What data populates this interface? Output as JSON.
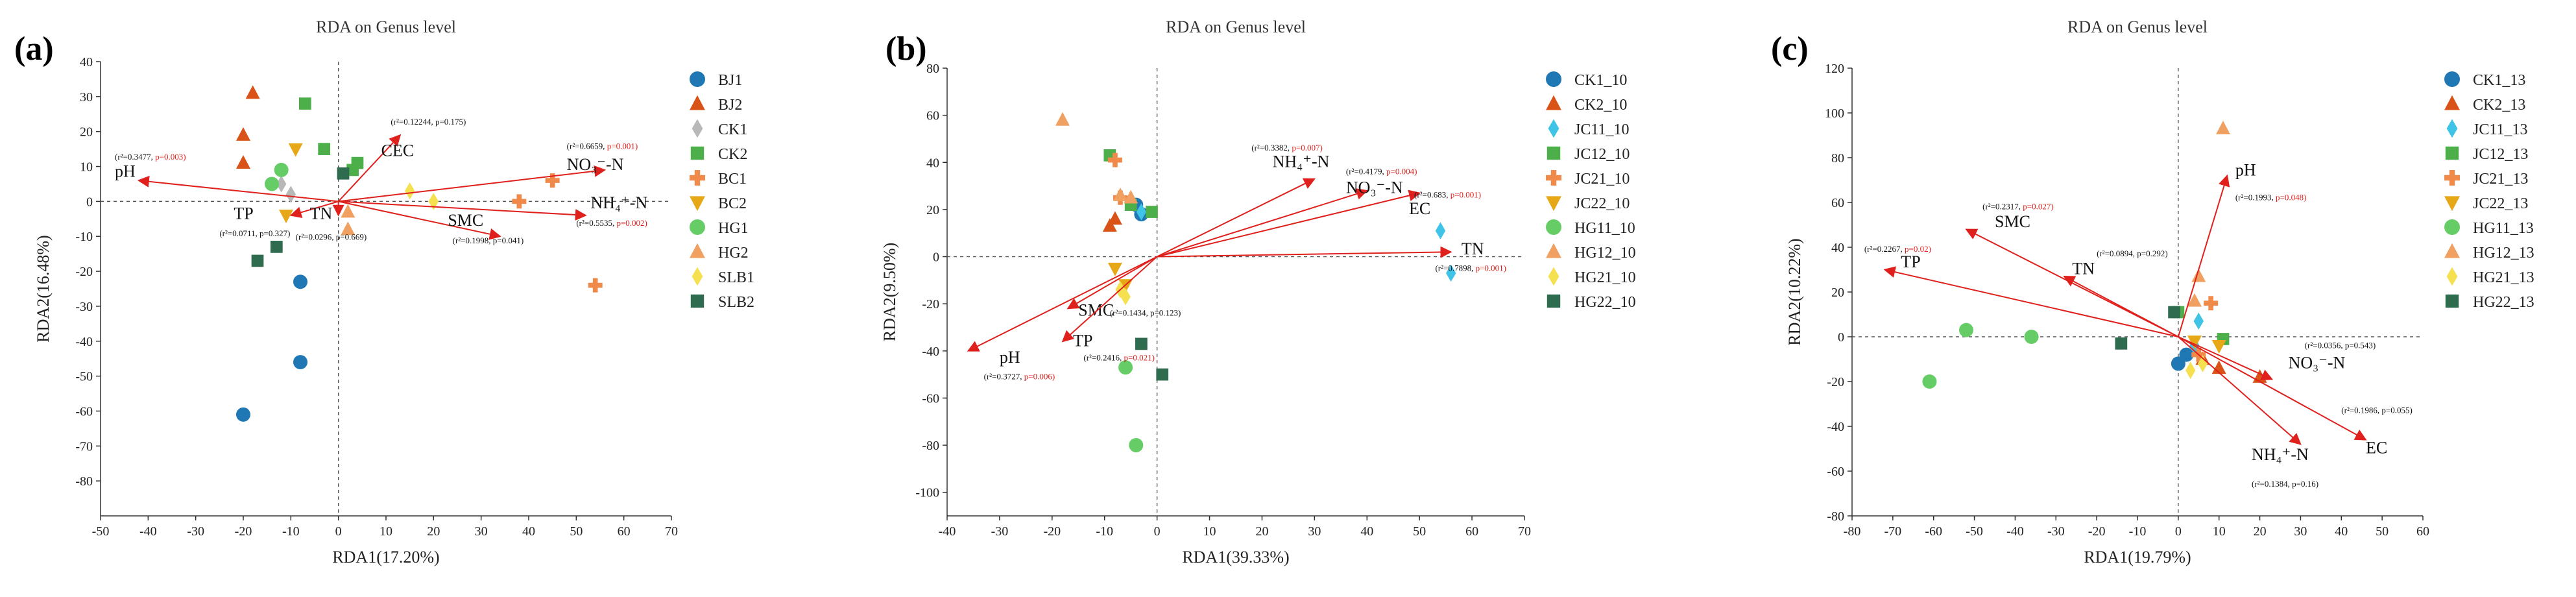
{
  "panels": [
    {
      "label": "(a)",
      "title": "RDA on Genus level",
      "xlabel": "RDA1(17.20%)",
      "ylabel": "RDA2(16.48%)",
      "xlim": [
        -50,
        70
      ],
      "xticks": [
        -50,
        -40,
        -30,
        -20,
        -10,
        0,
        10,
        20,
        30,
        40,
        50,
        60,
        70
      ],
      "ylim": [
        -90,
        40
      ],
      "yticks": [
        -80,
        -70,
        -60,
        -50,
        -40,
        -30,
        -20,
        -10,
        0,
        10,
        20,
        30,
        40
      ],
      "legend": [
        {
          "name": "BJ1",
          "color": "#1f77b4",
          "shape": "circle"
        },
        {
          "name": "BJ2",
          "color": "#d95319",
          "shape": "triangle"
        },
        {
          "name": "CK1",
          "color": "#b8b8b8",
          "shape": "diamond"
        },
        {
          "name": "CK2",
          "color": "#4daf4a",
          "shape": "square"
        },
        {
          "name": "BC1",
          "color": "#f08a4b",
          "shape": "plus"
        },
        {
          "name": "BC2",
          "color": "#e6a817",
          "shape": "invtriangle"
        },
        {
          "name": "HG1",
          "color": "#66cc66",
          "shape": "circle"
        },
        {
          "name": "HG2",
          "color": "#f0a060",
          "shape": "triangle"
        },
        {
          "name": "SLB1",
          "color": "#f5e050",
          "shape": "diamond"
        },
        {
          "name": "SLB2",
          "color": "#2e6b4f",
          "shape": "square"
        }
      ],
      "points": [
        {
          "g": 0,
          "x": -20,
          "y": -61
        },
        {
          "g": 0,
          "x": -8,
          "y": -46
        },
        {
          "g": 0,
          "x": -8,
          "y": -23
        },
        {
          "g": 1,
          "x": -18,
          "y": 31
        },
        {
          "g": 1,
          "x": -20,
          "y": 19
        },
        {
          "g": 1,
          "x": -20,
          "y": 11
        },
        {
          "g": 2,
          "x": -12,
          "y": 5
        },
        {
          "g": 2,
          "x": -10,
          "y": 2
        },
        {
          "g": 3,
          "x": -7,
          "y": 28
        },
        {
          "g": 3,
          "x": -3,
          "y": 15
        },
        {
          "g": 3,
          "x": 4,
          "y": 11
        },
        {
          "g": 3,
          "x": 3,
          "y": 9
        },
        {
          "g": 4,
          "x": 38,
          "y": 0
        },
        {
          "g": 4,
          "x": 45,
          "y": 6
        },
        {
          "g": 4,
          "x": 54,
          "y": -24
        },
        {
          "g": 5,
          "x": -9,
          "y": 15
        },
        {
          "g": 5,
          "x": -11,
          "y": -4
        },
        {
          "g": 6,
          "x": -12,
          "y": 9
        },
        {
          "g": 6,
          "x": -14,
          "y": 5
        },
        {
          "g": 7,
          "x": 2,
          "y": -8
        },
        {
          "g": 7,
          "x": 2,
          "y": -3
        },
        {
          "g": 8,
          "x": 15,
          "y": 3
        },
        {
          "g": 8,
          "x": 20,
          "y": 0
        },
        {
          "g": 9,
          "x": -17,
          "y": -17
        },
        {
          "g": 9,
          "x": 1,
          "y": 8
        },
        {
          "g": 9,
          "x": -13,
          "y": -13
        }
      ],
      "vectors": [
        {
          "name": "pH",
          "x": -42,
          "y": 6,
          "ann": "(r²=0.3477, ",
          "p": "p=0.003)",
          "pred": true,
          "lx": -47,
          "ly": 7,
          "ax": -47,
          "ay": 12
        },
        {
          "name": "CEC",
          "x": 13,
          "y": 19,
          "ann": "(r²=0.12244, p=0.175)",
          "p": "",
          "pred": false,
          "lx": 9,
          "ly": 13,
          "ax": 11,
          "ay": 22
        },
        {
          "name": "NO₃⁻-N",
          "x": 56,
          "y": 9,
          "ann": "(r²=0.6659, ",
          "p": "p=0.001)",
          "pred": true,
          "lx": 48,
          "ly": 9,
          "ax": 48,
          "ay": 15
        },
        {
          "name": "NH₄⁺-N",
          "x": 52,
          "y": -4,
          "ann": "(r²=0.5535, ",
          "p": "p=0.002)",
          "pred": true,
          "lx": 53,
          "ly": -2,
          "ax": 50,
          "ay": -7
        },
        {
          "name": "TP",
          "x": -10,
          "y": -4,
          "ann": "(r²=0.0711, p=0.327)",
          "p": "",
          "pred": false,
          "lx": -22,
          "ly": -5,
          "ax": -25,
          "ay": -10
        },
        {
          "name": "TN",
          "x": 0,
          "y": -4,
          "ann": "(r²=0.0296, p=0.669)",
          "p": "",
          "pred": false,
          "lx": -6,
          "ly": -5,
          "ax": -9,
          "ay": -11
        },
        {
          "name": "SMC",
          "x": 34,
          "y": -10,
          "ann": "(r²=0.1998, p=0.041)",
          "p": "",
          "pred": false,
          "lx": 23,
          "ly": -7,
          "ax": 24,
          "ay": -12
        }
      ]
    },
    {
      "label": "(b)",
      "title": "RDA on Genus level",
      "xlabel": "RDA1(39.33%)",
      "ylabel": "RDA2(9.50%)",
      "xlim": [
        -40,
        70
      ],
      "xticks": [
        -40,
        -30,
        -20,
        -10,
        0,
        10,
        20,
        30,
        40,
        50,
        60,
        70
      ],
      "ylim": [
        -110,
        80
      ],
      "yticks": [
        -100,
        -80,
        -60,
        -40,
        -20,
        0,
        20,
        40,
        60,
        80
      ],
      "legend": [
        {
          "name": "CK1_10",
          "color": "#1f77b4",
          "shape": "circle"
        },
        {
          "name": "CK2_10",
          "color": "#d95319",
          "shape": "triangle"
        },
        {
          "name": "JC11_10",
          "color": "#3fc3e6",
          "shape": "diamond"
        },
        {
          "name": "JC12_10",
          "color": "#4daf4a",
          "shape": "square"
        },
        {
          "name": "JC21_10",
          "color": "#f08a4b",
          "shape": "plus"
        },
        {
          "name": "JC22_10",
          "color": "#e6a817",
          "shape": "invtriangle"
        },
        {
          "name": "HG11_10",
          "color": "#66cc66",
          "shape": "circle"
        },
        {
          "name": "HG12_10",
          "color": "#f0a060",
          "shape": "triangle"
        },
        {
          "name": "HG21_10",
          "color": "#f5e050",
          "shape": "diamond"
        },
        {
          "name": "HG22_10",
          "color": "#2e6b4f",
          "shape": "square"
        }
      ],
      "points": [
        {
          "g": 0,
          "x": -4,
          "y": 22
        },
        {
          "g": 0,
          "x": -3,
          "y": 18
        },
        {
          "g": 1,
          "x": -8,
          "y": 16
        },
        {
          "g": 1,
          "x": -9,
          "y": 13
        },
        {
          "g": 2,
          "x": 54,
          "y": 11
        },
        {
          "g": 2,
          "x": 56,
          "y": -7
        },
        {
          "g": 2,
          "x": -3,
          "y": 19
        },
        {
          "g": 3,
          "x": -9,
          "y": 43
        },
        {
          "g": 3,
          "x": -1,
          "y": 19
        },
        {
          "g": 3,
          "x": -5,
          "y": 22
        },
        {
          "g": 4,
          "x": -8,
          "y": 41
        },
        {
          "g": 4,
          "x": -7,
          "y": 25
        },
        {
          "g": 5,
          "x": -8,
          "y": -5
        },
        {
          "g": 5,
          "x": -6,
          "y": -12
        },
        {
          "g": 6,
          "x": -4,
          "y": -80
        },
        {
          "g": 6,
          "x": -6,
          "y": -47
        },
        {
          "g": 7,
          "x": -18,
          "y": 58
        },
        {
          "g": 7,
          "x": -7,
          "y": 26
        },
        {
          "g": 7,
          "x": -5,
          "y": 25
        },
        {
          "g": 8,
          "x": -6,
          "y": -17
        },
        {
          "g": 8,
          "x": -7,
          "y": -14
        },
        {
          "g": 9,
          "x": 1,
          "y": -50
        },
        {
          "g": 9,
          "x": -3,
          "y": -37
        }
      ],
      "vectors": [
        {
          "name": "NH₄⁺-N",
          "x": 30,
          "y": 33,
          "ann": "(r²=0.3382, ",
          "p": "p=0.007)",
          "pred": true,
          "lx": 22,
          "ly": 38,
          "ax": 18,
          "ay": 45
        },
        {
          "name": "NO₃⁻-N",
          "x": 40,
          "y": 28,
          "ann": "(r²=0.4179, ",
          "p": "p=0.004)",
          "pred": true,
          "lx": 36,
          "ly": 27,
          "ax": 36,
          "ay": 35
        },
        {
          "name": "EC",
          "x": 50,
          "y": 27,
          "ann": "(r²=0.683, ",
          "p": "p=0.001)",
          "pred": true,
          "lx": 48,
          "ly": 18,
          "ax": 49,
          "ay": 25
        },
        {
          "name": "TN",
          "x": 56,
          "y": 2,
          "ann": "(r²=0.7898, ",
          "p": "p=0.001)",
          "pred": true,
          "lx": 58,
          "ly": 1,
          "ax": 53,
          "ay": -6
        },
        {
          "name": "SMC",
          "x": -17,
          "y": -22,
          "ann": "(r²=0.1434, p=0.123)",
          "p": "",
          "pred": false,
          "lx": -15,
          "ly": -25,
          "ax": -9,
          "ay": -25
        },
        {
          "name": "TP",
          "x": -18,
          "y": -36,
          "ann": "(r²=0.2416, ",
          "p": "p=0.021)",
          "pred": true,
          "lx": -16,
          "ly": -38,
          "ax": -14,
          "ay": -44
        },
        {
          "name": "pH",
          "x": -36,
          "y": -40,
          "ann": "(r²=0.3727, ",
          "p": "p=0.006)",
          "pred": true,
          "lx": -30,
          "ly": -45,
          "ax": -33,
          "ay": -52
        }
      ]
    },
    {
      "label": "(c)",
      "title": "RDA on Genus level",
      "xlabel": "RDA1(19.79%)",
      "ylabel": "RDA2(10.22%)",
      "xlim": [
        -80,
        60
      ],
      "xticks": [
        -80,
        -70,
        -60,
        -50,
        -40,
        -30,
        -20,
        -10,
        0,
        10,
        20,
        30,
        40,
        50,
        60
      ],
      "ylim": [
        -80,
        120
      ],
      "yticks": [
        -80,
        -60,
        -40,
        -20,
        0,
        20,
        40,
        60,
        80,
        100,
        120
      ],
      "legend": [
        {
          "name": "CK1_13",
          "color": "#1f77b4",
          "shape": "circle"
        },
        {
          "name": "CK2_13",
          "color": "#d95319",
          "shape": "triangle"
        },
        {
          "name": "JC11_13",
          "color": "#3fc3e6",
          "shape": "diamond"
        },
        {
          "name": "JC12_13",
          "color": "#4daf4a",
          "shape": "square"
        },
        {
          "name": "JC21_13",
          "color": "#f08a4b",
          "shape": "plus"
        },
        {
          "name": "JC22_13",
          "color": "#e6a817",
          "shape": "invtriangle"
        },
        {
          "name": "HG11_13",
          "color": "#66cc66",
          "shape": "circle"
        },
        {
          "name": "HG12_13",
          "color": "#f0a060",
          "shape": "triangle"
        },
        {
          "name": "HG21_13",
          "color": "#f5e050",
          "shape": "diamond"
        },
        {
          "name": "HG22_13",
          "color": "#2e6b4f",
          "shape": "square"
        }
      ],
      "points": [
        {
          "g": 0,
          "x": 0,
          "y": -12
        },
        {
          "g": 0,
          "x": 2,
          "y": -8
        },
        {
          "g": 1,
          "x": 6,
          "y": -10
        },
        {
          "g": 1,
          "x": 10,
          "y": -14
        },
        {
          "g": 1,
          "x": 20,
          "y": -18
        },
        {
          "g": 2,
          "x": 5,
          "y": 7
        },
        {
          "g": 2,
          "x": 4,
          "y": -4
        },
        {
          "g": 3,
          "x": 0,
          "y": 11
        },
        {
          "g": 3,
          "x": 11,
          "y": -1
        },
        {
          "g": 4,
          "x": 8,
          "y": 15
        },
        {
          "g": 4,
          "x": 5,
          "y": -8
        },
        {
          "g": 5,
          "x": 4,
          "y": -2
        },
        {
          "g": 5,
          "x": 10,
          "y": -4
        },
        {
          "g": 6,
          "x": -61,
          "y": -20
        },
        {
          "g": 6,
          "x": -52,
          "y": 3
        },
        {
          "g": 6,
          "x": -36,
          "y": 0
        },
        {
          "g": 7,
          "x": 11,
          "y": 93
        },
        {
          "g": 7,
          "x": 5,
          "y": 27
        },
        {
          "g": 7,
          "x": 4,
          "y": 16
        },
        {
          "g": 8,
          "x": 3,
          "y": -15
        },
        {
          "g": 8,
          "x": 6,
          "y": -12
        },
        {
          "g": 9,
          "x": -14,
          "y": -3
        },
        {
          "g": 9,
          "x": -1,
          "y": 11
        }
      ],
      "vectors": [
        {
          "name": "pH",
          "x": 12,
          "y": 72,
          "ann": "(r²=0.1993, ",
          "p": "p=0.048)",
          "pred": true,
          "lx": 14,
          "ly": 72,
          "ax": 14,
          "ay": 61
        },
        {
          "name": "SMC",
          "x": -52,
          "y": 48,
          "ann": "(r²=0.2317, ",
          "p": "p=0.027)",
          "pred": true,
          "lx": -45,
          "ly": 49,
          "ax": -48,
          "ay": 57
        },
        {
          "name": "TP",
          "x": -72,
          "y": 30,
          "ann": "(r²=0.2267, ",
          "p": "p=0.02)",
          "pred": true,
          "lx": -68,
          "ly": 31,
          "ax": -77,
          "ay": 38
        },
        {
          "name": "TN",
          "x": -28,
          "y": 27,
          "ann": "(r²=0.0894, p=0.292)",
          "p": "",
          "pred": false,
          "lx": -26,
          "ly": 28,
          "ax": -20,
          "ay": 36
        },
        {
          "name": "NO₃⁻-N",
          "x": 23,
          "y": -19,
          "ann": "(r²=0.0356, p=0.543)",
          "p": "",
          "pred": false,
          "lx": 27,
          "ly": -14,
          "ax": 31,
          "ay": -5
        },
        {
          "name": "EC",
          "x": 46,
          "y": -46,
          "ann": "(r²=0.1986, p=0.055)",
          "p": "",
          "pred": false,
          "lx": 46,
          "ly": -52,
          "ax": 40,
          "ay": -34
        },
        {
          "name": "NH₄⁺-N",
          "x": 30,
          "y": -48,
          "ann": "(r²=0.1384, p=0.16)",
          "p": "",
          "pred": false,
          "lx": 18,
          "ly": -55,
          "ax": 18,
          "ay": -67
        }
      ]
    }
  ],
  "chart_data": [
    {
      "type": "scatter",
      "title": "RDA on Genus level",
      "xlabel": "RDA1(17.20%)",
      "ylabel": "RDA2(16.48%)",
      "xlim": [
        -50,
        70
      ],
      "ylim": [
        -90,
        40
      ]
    },
    {
      "type": "scatter",
      "title": "RDA on Genus level",
      "xlabel": "RDA1(39.33%)",
      "ylabel": "RDA2(9.50%)",
      "xlim": [
        -40,
        70
      ],
      "ylim": [
        -110,
        80
      ]
    },
    {
      "type": "scatter",
      "title": "RDA on Genus level",
      "xlabel": "RDA1(19.79%)",
      "ylabel": "RDA2(10.22%)",
      "xlim": [
        -80,
        60
      ],
      "ylim": [
        -80,
        120
      ]
    }
  ],
  "colors": {
    "vector": "#e0201c",
    "axis": "#333333",
    "zero": "#555555"
  }
}
